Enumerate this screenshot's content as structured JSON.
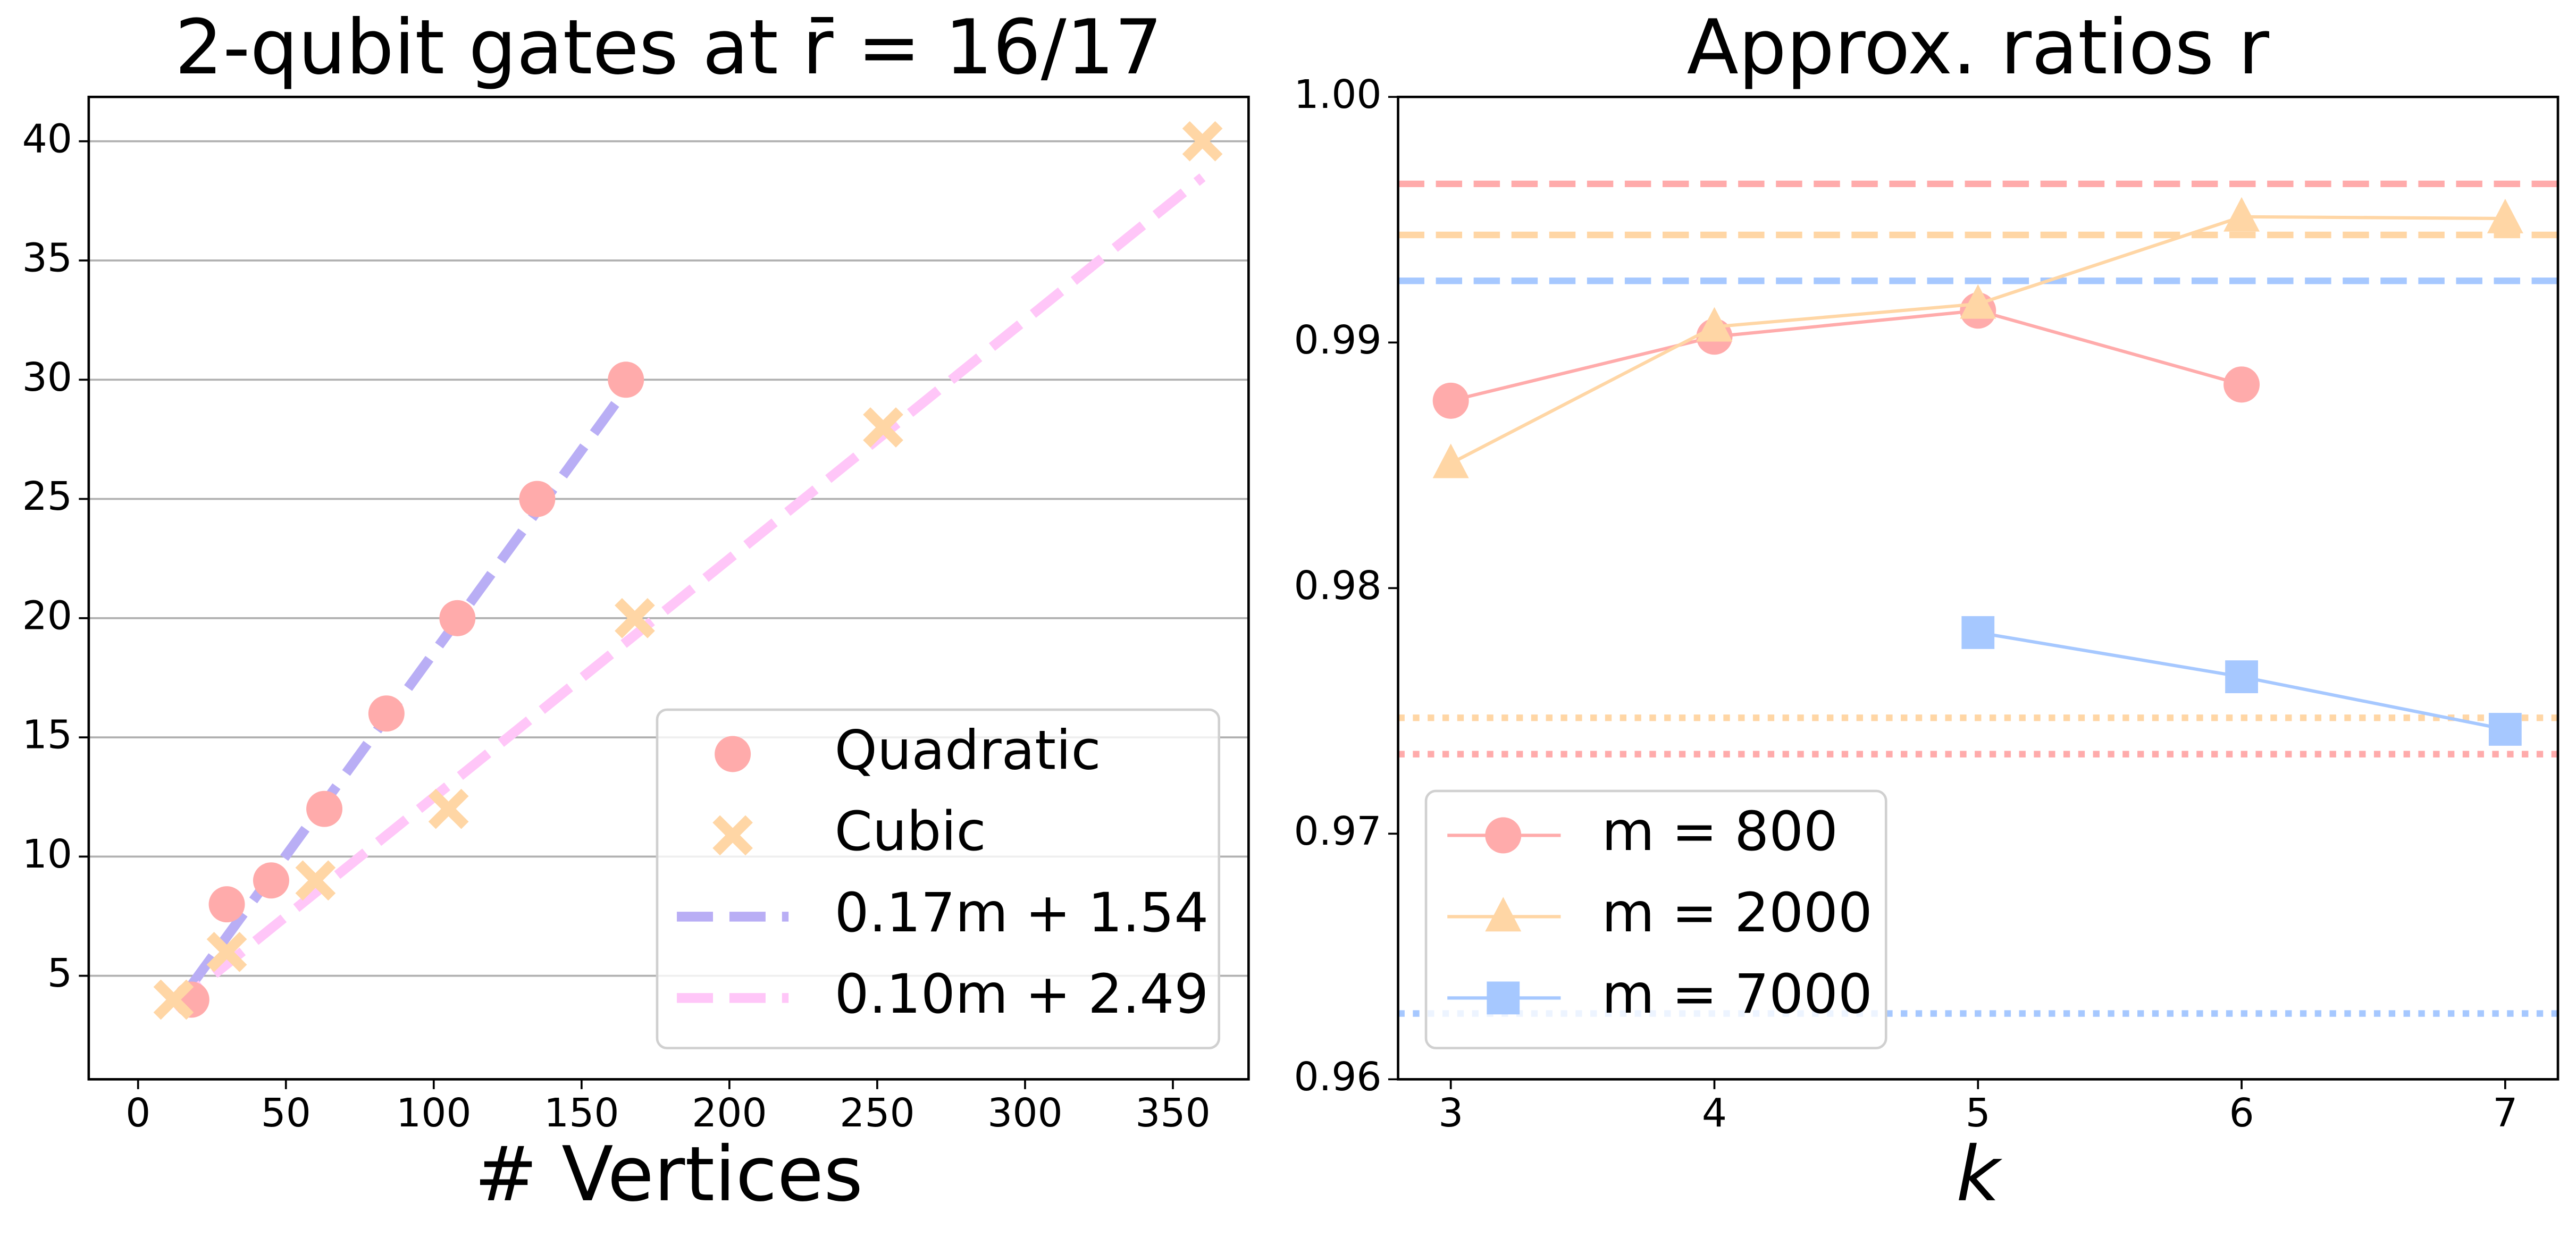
{
  "chart_data": [
    {
      "type": "scatter",
      "title": "2-qubit gates at r̄ = 16/17",
      "xlabel": "# Vertices",
      "xlim": [
        -16.7,
        375.6
      ],
      "ylim": [
        0.66,
        41.86
      ],
      "xticks": [
        0,
        50,
        100,
        150,
        200,
        250,
        300,
        350
      ],
      "yticks": [
        5,
        10,
        15,
        20,
        25,
        30,
        35,
        40
      ],
      "grid": "y",
      "legend": "lower right",
      "series": [
        {
          "name": "Quadratic",
          "color": "#ffabab",
          "marker": "circle",
          "x": [
            18,
            30,
            45,
            63,
            84,
            108,
            135,
            165
          ],
          "values": [
            4,
            8,
            9,
            12,
            16,
            20,
            25,
            30
          ]
        },
        {
          "name": "Cubic",
          "color": "#ffd6a5",
          "marker": "x",
          "x": [
            12,
            30,
            60,
            105,
            168,
            252,
            360
          ],
          "values": [
            4,
            6,
            9,
            12,
            20,
            28,
            40
          ]
        },
        {
          "name": "0.17m + 1.54",
          "color": "#b9aef5",
          "marker": "dashed-line",
          "x": [
            18,
            165
          ],
          "values": [
            4.6,
            29.6
          ]
        },
        {
          "name": "0.10m + 2.49",
          "color": "#ffc6f8",
          "marker": "dashed-line",
          "x": [
            12,
            360
          ],
          "values": [
            3.69,
            38.49
          ]
        }
      ]
    },
    {
      "type": "line",
      "title": "Approx. ratios r",
      "xlabel": "k",
      "xlim": [
        2.8,
        7.2
      ],
      "ylim": [
        0.96,
        1.0
      ],
      "xticks": [
        3,
        4,
        5,
        6,
        7
      ],
      "yticks": [
        0.96,
        0.97,
        0.98,
        0.99,
        {
          "value": 1.0,
          "label": "1.00"
        }
      ],
      "legend": "lower left",
      "x": [
        3,
        4,
        5,
        6,
        7
      ],
      "series": [
        {
          "name": "m = 800",
          "color": "#ffabab",
          "marker": "circle",
          "values": [
            0.98763,
            0.99024,
            0.9913,
            0.98829,
            null
          ],
          "reference_lines": {
            "dashed": 0.99646,
            "dotted": 0.97324
          }
        },
        {
          "name": "m = 2000",
          "color": "#ffd6a5",
          "marker": "triangle",
          "values": [
            0.98508,
            0.99064,
            0.99157,
            0.99512,
            0.99505
          ],
          "reference_lines": {
            "dashed": 0.99438,
            "dotted": 0.97472
          }
        },
        {
          "name": "m = 7000",
          "color": "#a6c8ff",
          "marker": "square",
          "values": [
            null,
            null,
            0.97819,
            0.97639,
            0.97425
          ],
          "reference_lines": {
            "dashed": 0.99251,
            "dotted": 0.96268
          }
        }
      ]
    }
  ]
}
